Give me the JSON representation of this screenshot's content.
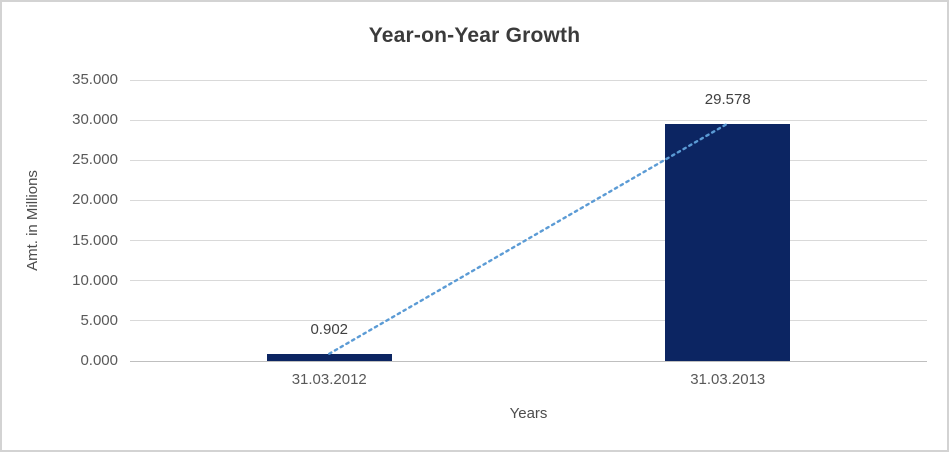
{
  "chart_data": {
    "type": "bar",
    "title": "Year-on-Year Growth",
    "xlabel": "Years",
    "ylabel": "Amt. in Millions",
    "categories": [
      "31.03.2012",
      "31.03.2013"
    ],
    "values": [
      0.902,
      29.578
    ],
    "data_labels": [
      "0.902",
      "29.578"
    ],
    "ylim": [
      0,
      35
    ],
    "yticks": [
      {
        "v": 0,
        "label": "0.000"
      },
      {
        "v": 5,
        "label": "5.000"
      },
      {
        "v": 10,
        "label": "10.000"
      },
      {
        "v": 15,
        "label": "15.000"
      },
      {
        "v": 20,
        "label": "20.000"
      },
      {
        "v": 25,
        "label": "25.000"
      },
      {
        "v": 30,
        "label": "30.000"
      },
      {
        "v": 35,
        "label": "35.000"
      }
    ],
    "grid": true,
    "legend": "none",
    "trendline": {
      "style": "dotted",
      "from_value": 0.902,
      "to_value": 29.578
    },
    "colors": {
      "bar": "#0c2562",
      "trendline": "#5b9bd5",
      "gridline": "#d9d9d9",
      "axis_line": "#bfbfbf",
      "tick_text": "#595959",
      "label_text": "#404040",
      "title_text": "#3b3b3b",
      "border": "#d3d3d3"
    }
  }
}
